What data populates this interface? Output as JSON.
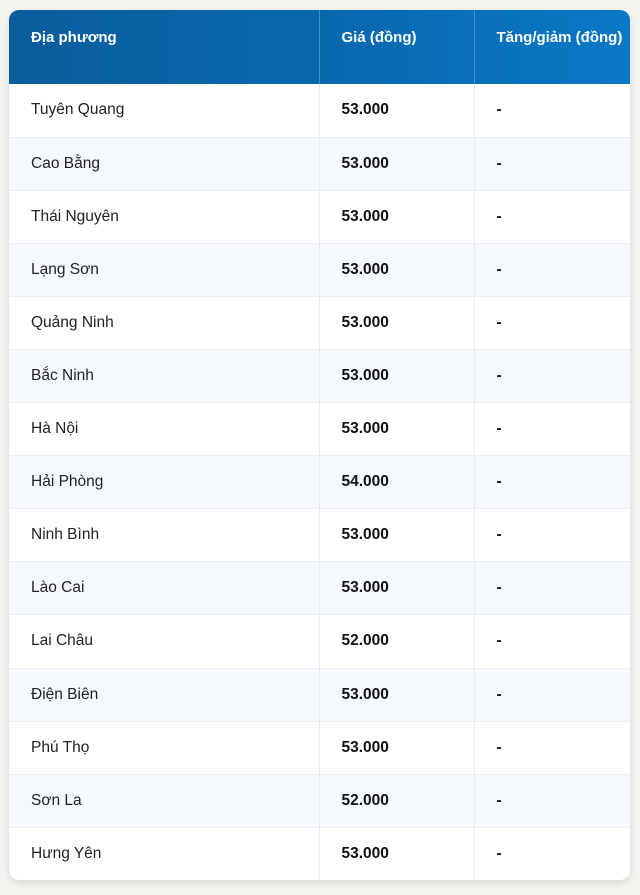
{
  "table": {
    "headers": [
      "Địa phương",
      "Giá (đồng)",
      "Tăng/giảm (đồng)"
    ],
    "rows": [
      {
        "location": "Tuyên Quang",
        "price": "53.000",
        "change": "-"
      },
      {
        "location": "Cao Bằng",
        "price": "53.000",
        "change": "-"
      },
      {
        "location": "Thái Nguyên",
        "price": "53.000",
        "change": "-"
      },
      {
        "location": "Lạng Sơn",
        "price": "53.000",
        "change": "-"
      },
      {
        "location": "Quảng Ninh",
        "price": "53.000",
        "change": "-"
      },
      {
        "location": "Bắc Ninh",
        "price": "53.000",
        "change": "-"
      },
      {
        "location": "Hà Nội",
        "price": "53.000",
        "change": "-"
      },
      {
        "location": "Hải Phòng",
        "price": "54.000",
        "change": "-"
      },
      {
        "location": "Ninh Bình",
        "price": "53.000",
        "change": "-"
      },
      {
        "location": "Lào Cai",
        "price": "53.000",
        "change": "-"
      },
      {
        "location": "Lai Châu",
        "price": "52.000",
        "change": "-"
      },
      {
        "location": "Điện Biên",
        "price": "53.000",
        "change": "-"
      },
      {
        "location": "Phú Thọ",
        "price": "53.000",
        "change": "-"
      },
      {
        "location": "Sơn La",
        "price": "52.000",
        "change": "-"
      },
      {
        "location": "Hưng Yên",
        "price": "53.000",
        "change": "-"
      }
    ]
  },
  "colors": {
    "header_start": "#0a5d9c",
    "header_end": "#0a78c6",
    "stripe": "#f5f8fd"
  }
}
